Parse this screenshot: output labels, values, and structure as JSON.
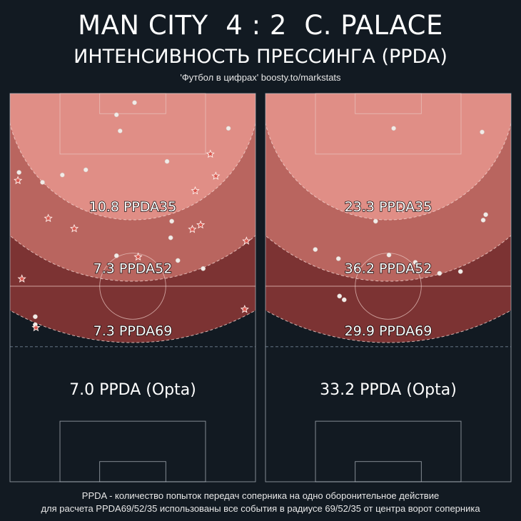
{
  "header": {
    "home_team": "MAN CITY",
    "score": "4 : 2",
    "away_team": "C. PALACE",
    "subtitle": "ИНТЕНСИВНОСТЬ ПРЕССИНГА (PPDA)",
    "credit": "'Футбол в цифрах' boosty.to/markstats"
  },
  "footer": {
    "line1": "PPDA - количество попыток передач соперника на одно оборонительное действие",
    "line2": "для расчета PPDA69/52/35 использованы все события в радиусе 69/52/35 от центра ворот соперника"
  },
  "colors": {
    "background": "#121a22",
    "zone35": "#e08e86",
    "zone52": "#b9655f",
    "zone69": "#7c3333",
    "marker_fill": "#f2ece8",
    "star_fill": "#d9564d"
  },
  "chart_data": [
    {
      "type": "scatter",
      "team": "MAN CITY",
      "zones": [
        {
          "label": "10.8 PPDA35",
          "radius": 35
        },
        {
          "label": "7.3 PPDA52",
          "radius": 52
        },
        {
          "label": "7.3 PPDA69",
          "radius": 69
        }
      ],
      "opta_label": "7.0 PPDA (Opta)",
      "xlim": [
        0,
        68
      ],
      "ylim": [
        52.5,
        120
      ],
      "points": [
        {
          "x": 34.5,
          "y": 117.5,
          "shape": "circle"
        },
        {
          "x": 29.5,
          "y": 114.2,
          "shape": "circle"
        },
        {
          "x": 30.5,
          "y": 109.8,
          "shape": "circle"
        },
        {
          "x": 60.5,
          "y": 110.5,
          "shape": "circle"
        },
        {
          "x": 43.5,
          "y": 101.5,
          "shape": "circle"
        },
        {
          "x": 55.5,
          "y": 103.5,
          "shape": "star"
        },
        {
          "x": 21.0,
          "y": 99.2,
          "shape": "circle"
        },
        {
          "x": 2.5,
          "y": 98.5,
          "shape": "circle"
        },
        {
          "x": 14.5,
          "y": 97.8,
          "shape": "circle"
        },
        {
          "x": 57.0,
          "y": 97.5,
          "shape": "star"
        },
        {
          "x": 2.2,
          "y": 96.3,
          "shape": "star"
        },
        {
          "x": 9.0,
          "y": 95.8,
          "shape": "circle"
        },
        {
          "x": 51.3,
          "y": 93.5,
          "shape": "star"
        },
        {
          "x": 10.6,
          "y": 86.0,
          "shape": "star"
        },
        {
          "x": 44.8,
          "y": 85.2,
          "shape": "circle"
        },
        {
          "x": 52.8,
          "y": 84.2,
          "shape": "star"
        },
        {
          "x": 17.8,
          "y": 83.2,
          "shape": "star"
        },
        {
          "x": 50.5,
          "y": 83.0,
          "shape": "star"
        },
        {
          "x": 44.5,
          "y": 80.7,
          "shape": "circle"
        },
        {
          "x": 65.5,
          "y": 79.8,
          "shape": "star"
        },
        {
          "x": 29.5,
          "y": 75.8,
          "shape": "circle"
        },
        {
          "x": 35.5,
          "y": 75.5,
          "shape": "star"
        },
        {
          "x": 46.5,
          "y": 74.5,
          "shape": "circle"
        },
        {
          "x": 53.5,
          "y": 72.3,
          "shape": "circle"
        },
        {
          "x": 3.3,
          "y": 69.5,
          "shape": "star"
        },
        {
          "x": 65.0,
          "y": 61.2,
          "shape": "star"
        },
        {
          "x": 7.0,
          "y": 59.2,
          "shape": "circle"
        },
        {
          "x": 7.0,
          "y": 57.0,
          "shape": "circle"
        },
        {
          "x": 7.2,
          "y": 56.2,
          "shape": "star"
        }
      ]
    },
    {
      "type": "scatter",
      "team": "C. PALACE",
      "zones": [
        {
          "label": "23.3 PPDA35",
          "radius": 35
        },
        {
          "label": "36.2 PPDA52",
          "radius": 52
        },
        {
          "label": "29.9 PPDA69",
          "radius": 69
        }
      ],
      "opta_label": "33.2 PPDA (Opta)",
      "xlim": [
        0,
        68
      ],
      "ylim": [
        52.5,
        120
      ],
      "points": [
        {
          "x": 35.5,
          "y": 110.5,
          "shape": "circle"
        },
        {
          "x": 60.0,
          "y": 109.5,
          "shape": "circle"
        },
        {
          "x": 37.5,
          "y": 88.5,
          "shape": "star"
        },
        {
          "x": 61.0,
          "y": 87.0,
          "shape": "circle"
        },
        {
          "x": 60.3,
          "y": 85.5,
          "shape": "circle"
        },
        {
          "x": 30.5,
          "y": 85.2,
          "shape": "circle"
        },
        {
          "x": 13.8,
          "y": 77.5,
          "shape": "circle"
        },
        {
          "x": 34.2,
          "y": 76.0,
          "shape": "circle"
        },
        {
          "x": 20.2,
          "y": 75.0,
          "shape": "circle"
        },
        {
          "x": 41.5,
          "y": 74.0,
          "shape": "circle"
        },
        {
          "x": 54.0,
          "y": 71.5,
          "shape": "circle"
        },
        {
          "x": 48.2,
          "y": 71.0,
          "shape": "circle"
        },
        {
          "x": 20.5,
          "y": 64.8,
          "shape": "circle"
        },
        {
          "x": 21.8,
          "y": 63.8,
          "shape": "circle"
        }
      ]
    }
  ]
}
